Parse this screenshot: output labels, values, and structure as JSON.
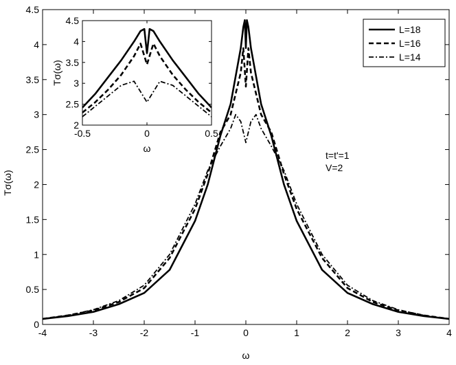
{
  "chart_data": [
    {
      "id": "main",
      "type": "line",
      "xlabel": "ω",
      "ylabel": "Tσ(ω)",
      "xlim": [
        -4,
        4
      ],
      "ylim": [
        0,
        4.5
      ],
      "xticks": [
        -4,
        -3,
        -2,
        -1,
        0,
        1,
        2,
        3,
        4
      ],
      "yticks": [
        0,
        0.5,
        1,
        1.5,
        2,
        2.5,
        3,
        3.5,
        4,
        4.5
      ],
      "xtick_labels": [
        "-4",
        "-3",
        "-2",
        "-1",
        "0",
        "1",
        "2",
        "3",
        "4"
      ],
      "ytick_labels": [
        "0",
        "0.5",
        "1",
        "1.5",
        "2",
        "2.5",
        "3",
        "3.5",
        "4",
        "4.5"
      ],
      "grid": false,
      "legend_position": "top-right",
      "annotations": [
        "t=t'=1",
        "V=2"
      ],
      "series": [
        {
          "name": "L=18",
          "style": "solid",
          "x": [
            -4,
            -3.5,
            -3,
            -2.5,
            -2,
            -1.5,
            -1,
            -0.75,
            -0.5,
            -0.3,
            -0.2,
            -0.1,
            -0.05,
            -0.02,
            0,
            0.02,
            0.05,
            0.1,
            0.2,
            0.3,
            0.5,
            0.75,
            1,
            1.5,
            2,
            2.5,
            3,
            3.5,
            4
          ],
          "y": [
            0.08,
            0.12,
            0.18,
            0.29,
            0.45,
            0.78,
            1.48,
            2.0,
            2.7,
            3.15,
            3.55,
            3.95,
            4.25,
            4.35,
            3.95,
            4.35,
            4.25,
            3.95,
            3.55,
            3.15,
            2.7,
            2.0,
            1.48,
            0.78,
            0.45,
            0.29,
            0.18,
            0.12,
            0.08
          ]
        },
        {
          "name": "L=16",
          "style": "dashed",
          "x": [
            -4,
            -3.5,
            -3,
            -2.5,
            -2,
            -1.5,
            -1,
            -0.75,
            -0.5,
            -0.3,
            -0.2,
            -0.1,
            -0.05,
            0,
            0.05,
            0.1,
            0.2,
            0.3,
            0.5,
            0.75,
            1,
            1.5,
            2,
            2.5,
            3,
            3.5,
            4
          ],
          "y": [
            0.08,
            0.13,
            0.2,
            0.32,
            0.52,
            0.95,
            1.65,
            2.15,
            2.75,
            3.0,
            3.3,
            3.6,
            3.95,
            3.4,
            3.95,
            3.6,
            3.3,
            3.0,
            2.75,
            2.15,
            1.65,
            0.95,
            0.52,
            0.32,
            0.2,
            0.13,
            0.08
          ]
        },
        {
          "name": "L=14",
          "style": "dashdot",
          "x": [
            -4,
            -3.5,
            -3,
            -2.5,
            -2,
            -1.5,
            -1,
            -0.75,
            -0.5,
            -0.3,
            -0.2,
            -0.1,
            0,
            0.1,
            0.2,
            0.3,
            0.5,
            0.75,
            1,
            1.5,
            2,
            2.5,
            3,
            3.5,
            4
          ],
          "y": [
            0.08,
            0.13,
            0.21,
            0.34,
            0.56,
            1.0,
            1.72,
            2.2,
            2.55,
            2.8,
            3.0,
            2.9,
            2.6,
            2.9,
            3.0,
            2.8,
            2.55,
            2.2,
            1.72,
            1.0,
            0.56,
            0.34,
            0.21,
            0.13,
            0.08
          ]
        }
      ]
    },
    {
      "id": "inset",
      "type": "line",
      "xlabel": "ω",
      "ylabel": "Tσ(ω)",
      "xlim": [
        -0.5,
        0.5
      ],
      "ylim": [
        2,
        4.5
      ],
      "xticks": [
        -0.5,
        0,
        0.5
      ],
      "yticks": [
        2,
        2.5,
        3,
        3.5,
        4,
        4.5
      ],
      "xtick_labels": [
        "-0.5",
        "0",
        "0.5"
      ],
      "ytick_labels": [
        "2",
        "2.5",
        "3",
        "3.5",
        "4",
        "4.5"
      ],
      "grid": false,
      "series": [
        {
          "name": "L=18",
          "style": "solid",
          "x": [
            -0.5,
            -0.4,
            -0.3,
            -0.2,
            -0.1,
            -0.05,
            -0.02,
            -0.01,
            0,
            0.01,
            0.02,
            0.05,
            0.1,
            0.2,
            0.3,
            0.4,
            0.5
          ],
          "y": [
            2.42,
            2.75,
            3.15,
            3.55,
            4.0,
            4.25,
            4.3,
            4.0,
            3.72,
            4.0,
            4.3,
            4.25,
            4.0,
            3.55,
            3.15,
            2.75,
            2.42
          ]
        },
        {
          "name": "L=16",
          "style": "dashed",
          "x": [
            -0.5,
            -0.4,
            -0.3,
            -0.2,
            -0.1,
            -0.05,
            0,
            0.05,
            0.1,
            0.2,
            0.3,
            0.4,
            0.5
          ],
          "y": [
            2.3,
            2.55,
            2.85,
            3.2,
            3.65,
            3.95,
            3.45,
            3.95,
            3.65,
            3.2,
            2.85,
            2.55,
            2.3
          ]
        },
        {
          "name": "L=14",
          "style": "dashdot",
          "x": [
            -0.5,
            -0.4,
            -0.3,
            -0.2,
            -0.1,
            -0.05,
            0,
            0.05,
            0.1,
            0.2,
            0.3,
            0.4,
            0.5
          ],
          "y": [
            2.2,
            2.45,
            2.7,
            2.95,
            3.05,
            2.8,
            2.55,
            2.8,
            3.05,
            2.95,
            2.7,
            2.45,
            2.2
          ]
        }
      ]
    }
  ]
}
